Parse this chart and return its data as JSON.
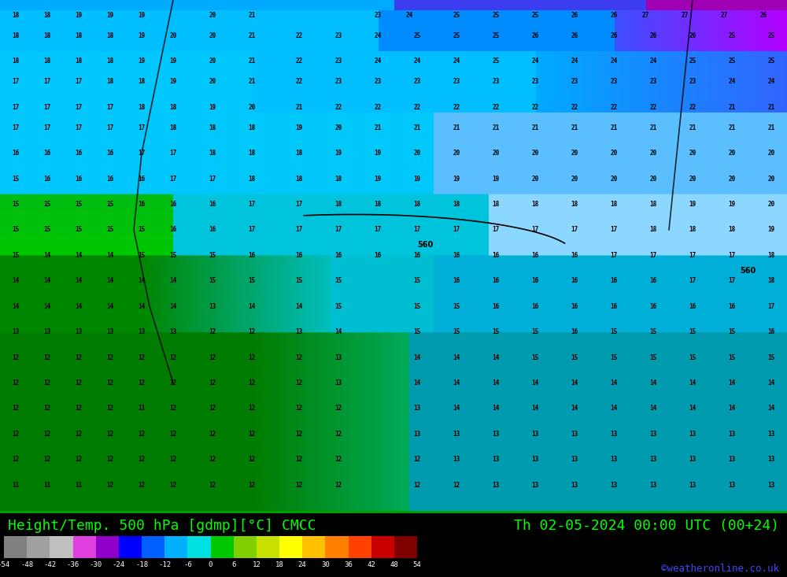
{
  "title_left": "Height/Temp. 500 hPa [gdmp][°C] CMCC",
  "title_right": "Th 02-05-2024 00:00 UTC (00+24)",
  "credit": "©weatheronline.co.uk",
  "colorbar_levels": [
    -54,
    -48,
    -42,
    -36,
    -30,
    -24,
    -18,
    -12,
    -6,
    0,
    6,
    12,
    18,
    24,
    30,
    36,
    42,
    48,
    54
  ],
  "colorbar_colors": [
    "#808080",
    "#a0a0a0",
    "#c0c0c0",
    "#e040e0",
    "#9000c8",
    "#0000ff",
    "#0060ff",
    "#00b0ff",
    "#00e0e0",
    "#00c800",
    "#80d000",
    "#c8e000",
    "#ffff00",
    "#ffc000",
    "#ff8000",
    "#ff4000",
    "#c80000",
    "#800000"
  ],
  "bg_color": "#000000",
  "title_color": "#00ff00",
  "title_fontsize": 13,
  "credit_color": "#4444ff",
  "label_color": "#ffffff",
  "green_line_color": "#00aa00"
}
